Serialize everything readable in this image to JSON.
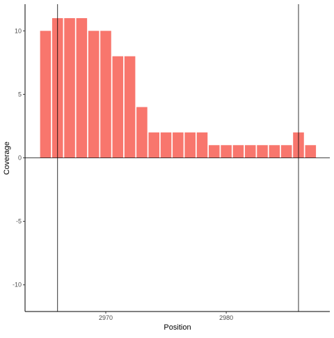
{
  "chart_data": {
    "type": "bar",
    "xlabel": "Position",
    "ylabel": "Coverage",
    "xlim": [
      2963.3,
      2988.6
    ],
    "ylim": [
      -12.1,
      12.1
    ],
    "x_ticks": [
      2970,
      2980
    ],
    "y_ticks": [
      -10,
      -5,
      0,
      5,
      10
    ],
    "grid": false,
    "legend": "none",
    "bar_color": "#F8766D",
    "reference_lines": {
      "vertical": [
        2966,
        2986
      ],
      "horizontal": [
        0
      ]
    },
    "x": [
      2965,
      2966,
      2967,
      2968,
      2969,
      2970,
      2971,
      2972,
      2973,
      2974,
      2975,
      2976,
      2977,
      2978,
      2979,
      2980,
      2981,
      2982,
      2983,
      2984,
      2985,
      2986,
      2987
    ],
    "values": [
      10,
      11,
      11,
      11,
      10,
      10,
      8,
      8,
      4,
      2,
      2,
      2,
      2,
      2,
      1,
      1,
      1,
      1,
      1,
      1,
      1,
      2,
      1
    ]
  }
}
